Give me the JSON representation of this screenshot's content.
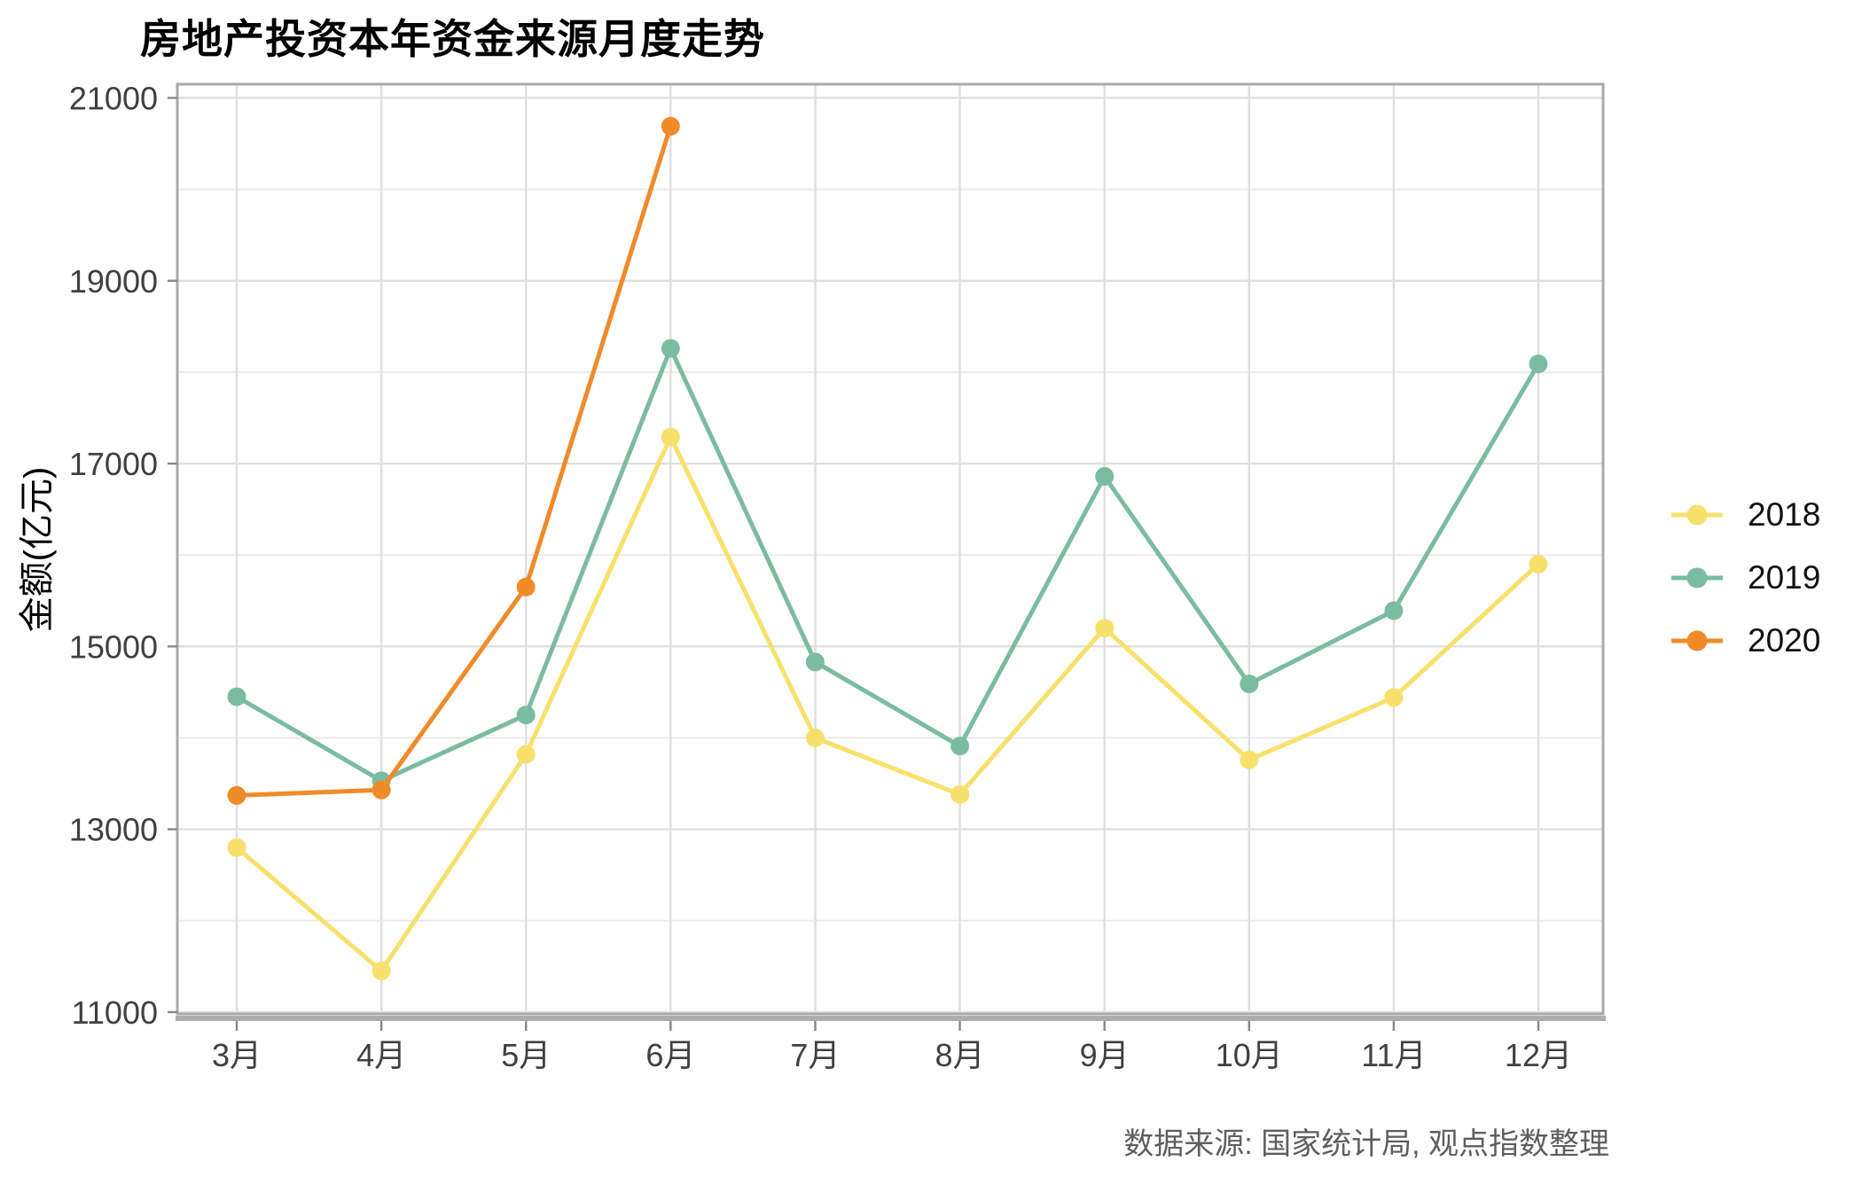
{
  "title": "房地产投资本年资金来源月度走势",
  "y_axis_title": "金额(亿元)",
  "caption": "数据来源: 国家统计局, 观点指数整理",
  "legend": {
    "position": "right",
    "items": [
      {
        "label": "2018",
        "color": "#F8E06C"
      },
      {
        "label": "2019",
        "color": "#7ABCA2"
      },
      {
        "label": "2020",
        "color": "#F18A28"
      }
    ]
  },
  "chart_data": {
    "type": "line",
    "title": "房地产投资本年资金来源月度走势",
    "xlabel": "",
    "ylabel": "金额(亿元)",
    "categories": [
      "3月",
      "4月",
      "5月",
      "6月",
      "7月",
      "8月",
      "9月",
      "10月",
      "11月",
      "12月"
    ],
    "series": [
      {
        "name": "2018",
        "color": "#F8E06C",
        "values": [
          12800,
          11450,
          13820,
          17290,
          14000,
          13380,
          15200,
          13760,
          14440,
          15900
        ]
      },
      {
        "name": "2019",
        "color": "#7ABCA2",
        "values": [
          14450,
          13530,
          14250,
          18260,
          14830,
          13910,
          16860,
          14590,
          15390,
          18090
        ]
      },
      {
        "name": "2020",
        "color": "#F18A28",
        "values": [
          13370,
          13430,
          15650,
          20690
        ]
      }
    ],
    "y_ticks": [
      11000,
      13000,
      15000,
      17000,
      19000,
      21000
    ],
    "y_minor_ticks": [
      12000,
      14000,
      16000,
      18000,
      20000
    ],
    "ylim": [
      10980,
      21150
    ],
    "grid": "on",
    "legend_position": "right"
  }
}
